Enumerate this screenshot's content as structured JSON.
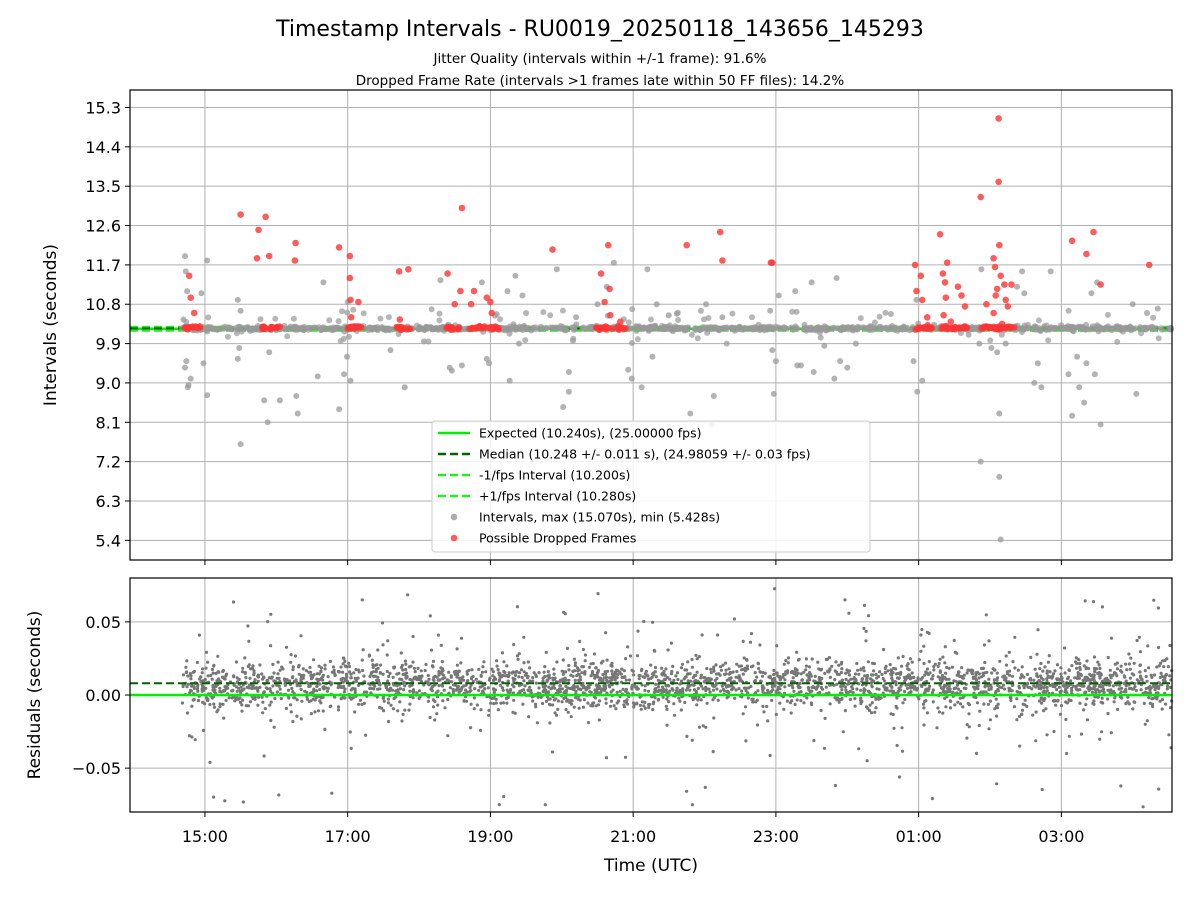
{
  "chart_data": {
    "type": "scatter",
    "title": "Timestamp Intervals - RU0019_20250118_143656_145293",
    "subtitle_lines": [
      "Jitter Quality (intervals within +/-1 frame): 91.6%",
      "Dropped Frame Rate (intervals >1 frames late within 50 FF files): 14.2%"
    ],
    "x_axis": {
      "label": "Time (UTC)",
      "range_hours": [
        13.95,
        28.55
      ],
      "ticks": [
        {
          "hour": 15,
          "label": "15:00"
        },
        {
          "hour": 17,
          "label": "17:00"
        },
        {
          "hour": 19,
          "label": "19:00"
        },
        {
          "hour": 21,
          "label": "21:00"
        },
        {
          "hour": 23,
          "label": "23:00"
        },
        {
          "hour": 25,
          "label": "01:00"
        },
        {
          "hour": 27,
          "label": "03:00"
        }
      ]
    },
    "top_panel": {
      "ylabel": "Intervals (seconds)",
      "ylim": [
        4.95,
        15.7
      ],
      "yticks": [
        "15.3",
        "14.4",
        "13.5",
        "12.6",
        "11.7",
        "10.8",
        "9.9",
        "9.0",
        "8.1",
        "7.2",
        "6.3",
        "5.4"
      ],
      "grid": true,
      "lines": {
        "expected": 10.24,
        "median": 10.248,
        "lower": 10.2,
        "upper": 10.28
      },
      "legend": [
        {
          "label": "Expected (10.240s), (25.00000 fps)",
          "style": "solid",
          "color": "#00ee00"
        },
        {
          "label": "Median (10.248 +/- 0.011 s), (24.98059 +/- 0.03 fps)",
          "style": "dashed",
          "color": "#006400"
        },
        {
          "label": "-1/fps Interval (10.200s)",
          "style": "dashed",
          "color": "#22ee22"
        },
        {
          "label": "+1/fps Interval (10.280s)",
          "style": "dashed",
          "color": "#22ee22"
        },
        {
          "label": "Intervals, max (15.070s), min (5.428s)",
          "style": "marker",
          "color": "#999999"
        },
        {
          "label": "Possible Dropped Frames",
          "style": "marker",
          "color": "#ff3333"
        }
      ],
      "gray_outliers": [
        [
          14.72,
          11.9
        ],
        [
          14.73,
          11.55
        ],
        [
          14.75,
          11.1
        ],
        [
          14.7,
          10.45
        ],
        [
          14.74,
          9.5
        ],
        [
          14.76,
          8.9
        ],
        [
          14.8,
          9.1
        ],
        [
          14.72,
          9.35
        ],
        [
          14.77,
          8.95
        ],
        [
          14.95,
          11.05
        ],
        [
          15.03,
          11.8
        ],
        [
          14.98,
          9.45
        ],
        [
          15.03,
          8.72
        ],
        [
          15.46,
          10.9
        ],
        [
          15.5,
          10.65
        ],
        [
          15.48,
          9.8
        ],
        [
          15.46,
          9.55
        ],
        [
          15.5,
          7.6
        ],
        [
          15.83,
          8.6
        ],
        [
          15.88,
          8.1
        ],
        [
          15.9,
          9.7
        ],
        [
          16.05,
          8.6
        ],
        [
          16.28,
          8.7
        ],
        [
          16.3,
          8.3
        ],
        [
          16.88,
          8.4
        ],
        [
          16.95,
          9.2
        ],
        [
          16.99,
          9.6
        ],
        [
          17.04,
          9.05
        ],
        [
          17.0,
          10.85
        ],
        [
          16.58,
          9.15
        ],
        [
          16.66,
          11.3
        ],
        [
          17.6,
          9.75
        ],
        [
          17.8,
          8.9
        ],
        [
          18.07,
          9.95
        ],
        [
          18.3,
          11.35
        ],
        [
          18.43,
          9.35
        ],
        [
          18.46,
          9.28
        ],
        [
          18.6,
          9.4
        ],
        [
          18.88,
          11.3
        ],
        [
          18.95,
          9.55
        ],
        [
          18.98,
          9.45
        ],
        [
          19.24,
          11.1
        ],
        [
          19.27,
          9.05
        ],
        [
          19.35,
          11.45
        ],
        [
          19.4,
          9.9
        ],
        [
          19.45,
          11.0
        ],
        [
          19.5,
          10.6
        ],
        [
          19.93,
          11.6
        ],
        [
          20.1,
          9.25
        ],
        [
          20.1,
          8.8
        ],
        [
          20.02,
          8.45
        ],
        [
          20.2,
          10.5
        ],
        [
          20.5,
          10.8
        ],
        [
          20.93,
          9.3
        ],
        [
          20.98,
          9.1
        ],
        [
          20.63,
          11.2
        ],
        [
          20.73,
          11.75
        ],
        [
          21.2,
          11.6
        ],
        [
          21.12,
          8.9
        ],
        [
          21.27,
          9.6
        ],
        [
          21.33,
          10.8
        ],
        [
          21.5,
          10.55
        ],
        [
          21.8,
          8.3
        ],
        [
          22.02,
          10.8
        ],
        [
          22.1,
          8.05
        ],
        [
          22.13,
          8.7
        ],
        [
          22.25,
          10.5
        ],
        [
          22.95,
          9.75
        ],
        [
          22.92,
          10.65
        ],
        [
          22.97,
          8.75
        ],
        [
          23.0,
          9.5
        ],
        [
          23.04,
          11.0
        ],
        [
          23.27,
          11.1
        ],
        [
          23.3,
          9.4
        ],
        [
          23.35,
          9.4
        ],
        [
          23.53,
          9.25
        ],
        [
          23.5,
          11.3
        ],
        [
          23.68,
          9.85
        ],
        [
          23.82,
          9.1
        ],
        [
          23.85,
          11.4
        ],
        [
          23.9,
          9.5
        ],
        [
          24.0,
          9.35
        ],
        [
          24.08,
          10.2
        ],
        [
          24.12,
          9.9
        ],
        [
          24.97,
          10.9
        ],
        [
          24.93,
          9.5
        ],
        [
          24.98,
          8.8
        ],
        [
          25.05,
          9.05
        ],
        [
          25.7,
          10.1
        ],
        [
          25.85,
          9.9
        ],
        [
          25.87,
          7.2
        ],
        [
          25.88,
          11.6
        ],
        [
          26.02,
          9.8
        ],
        [
          26.1,
          9.7
        ],
        [
          26.13,
          8.3
        ],
        [
          26.13,
          6.85
        ],
        [
          26.15,
          5.42
        ],
        [
          26.22,
          9.9
        ],
        [
          26.38,
          11.2
        ],
        [
          26.45,
          11.55
        ],
        [
          26.48,
          11.05
        ],
        [
          26.62,
          9.0
        ],
        [
          26.67,
          9.45
        ],
        [
          26.72,
          8.9
        ],
        [
          26.85,
          11.55
        ],
        [
          27.1,
          9.2
        ],
        [
          27.15,
          8.25
        ],
        [
          27.22,
          9.6
        ],
        [
          27.25,
          8.9
        ],
        [
          27.35,
          9.45
        ],
        [
          27.47,
          9.2
        ],
        [
          27.32,
          8.55
        ],
        [
          27.42,
          11.05
        ],
        [
          27.5,
          11.3
        ],
        [
          27.55,
          8.05
        ],
        [
          28.0,
          10.8
        ],
        [
          28.05,
          8.75
        ],
        [
          28.2,
          10.6
        ],
        [
          28.35,
          10.7
        ]
      ],
      "red_dropped": [
        [
          14.78,
          11.45
        ],
        [
          14.8,
          10.95
        ],
        [
          14.85,
          10.6
        ],
        [
          15.5,
          12.85
        ],
        [
          15.75,
          12.5
        ],
        [
          15.85,
          12.8
        ],
        [
          15.73,
          11.85
        ],
        [
          15.9,
          11.9
        ],
        [
          16.27,
          12.2
        ],
        [
          16.26,
          11.8
        ],
        [
          16.88,
          12.1
        ],
        [
          17.03,
          11.9
        ],
        [
          17.03,
          11.4
        ],
        [
          17.04,
          10.9
        ],
        [
          17.05,
          10.5
        ],
        [
          17.15,
          10.85
        ],
        [
          17.72,
          11.55
        ],
        [
          17.85,
          11.6
        ],
        [
          17.73,
          10.45
        ],
        [
          18.4,
          11.5
        ],
        [
          18.6,
          13.0
        ],
        [
          18.58,
          11.1
        ],
        [
          18.5,
          10.8
        ],
        [
          18.73,
          10.8
        ],
        [
          18.77,
          11.1
        ],
        [
          18.95,
          10.95
        ],
        [
          19.0,
          10.85
        ],
        [
          19.02,
          10.6
        ],
        [
          19.87,
          12.05
        ],
        [
          20.55,
          11.5
        ],
        [
          20.65,
          12.15
        ],
        [
          20.67,
          11.15
        ],
        [
          20.6,
          10.85
        ],
        [
          20.68,
          10.55
        ],
        [
          20.82,
          10.4
        ],
        [
          21.75,
          12.15
        ],
        [
          22.22,
          12.45
        ],
        [
          22.25,
          11.8
        ],
        [
          22.93,
          11.75
        ],
        [
          22.95,
          11.75
        ],
        [
          24.95,
          11.7
        ],
        [
          24.97,
          11.1
        ],
        [
          25.03,
          11.45
        ],
        [
          25.05,
          10.9
        ],
        [
          25.12,
          10.5
        ],
        [
          25.3,
          12.4
        ],
        [
          25.34,
          11.5
        ],
        [
          25.37,
          11.3
        ],
        [
          25.4,
          11.75
        ],
        [
          25.38,
          10.95
        ],
        [
          25.55,
          11.2
        ],
        [
          25.6,
          11.0
        ],
        [
          25.65,
          10.75
        ],
        [
          25.35,
          10.55
        ],
        [
          25.45,
          10.4
        ],
        [
          25.87,
          13.25
        ],
        [
          25.95,
          10.8
        ],
        [
          26.05,
          11.85
        ],
        [
          26.07,
          11.65
        ],
        [
          26.1,
          11.15
        ],
        [
          26.12,
          13.6
        ],
        [
          26.12,
          15.05
        ],
        [
          26.13,
          12.15
        ],
        [
          26.15,
          11.45
        ],
        [
          26.2,
          11.25
        ],
        [
          26.22,
          10.9
        ],
        [
          26.25,
          10.75
        ],
        [
          26.08,
          11.0
        ],
        [
          26.05,
          10.6
        ],
        [
          26.17,
          10.35
        ],
        [
          26.3,
          11.25
        ],
        [
          27.15,
          12.25
        ],
        [
          27.35,
          11.95
        ],
        [
          27.45,
          12.45
        ],
        [
          27.55,
          11.25
        ],
        [
          28.23,
          11.7
        ]
      ],
      "red_baseline_clusters": [
        [
          14.72,
          14.95
        ],
        [
          15.8,
          16.05
        ],
        [
          17.0,
          17.25
        ],
        [
          17.68,
          17.88
        ],
        [
          18.38,
          18.6
        ],
        [
          18.7,
          18.92
        ],
        [
          18.95,
          19.12
        ],
        [
          20.48,
          20.72
        ],
        [
          20.75,
          20.9
        ],
        [
          24.93,
          25.2
        ],
        [
          25.32,
          25.68
        ],
        [
          25.85,
          26.38
        ]
      ]
    },
    "bottom_panel": {
      "ylabel": "Residuals (seconds)",
      "ylim": [
        -0.08,
        0.08
      ],
      "yticks": [
        {
          "value": 0.05,
          "label": "0.05"
        },
        {
          "value": 0.0,
          "label": "0.00"
        },
        {
          "value": -0.05,
          "label": "−0.05"
        }
      ],
      "expected_line": 0.0,
      "median_line": 0.008,
      "residual_spread": {
        "core_sd": 0.008,
        "core_mean": 0.007,
        "tail_range": [
          -0.078,
          0.074
        ]
      }
    },
    "colors": {
      "expected": "#00ee00",
      "median": "#006400",
      "bounds": "#22ee22",
      "gray": "#999999",
      "red": "#ff3333",
      "residual": "#777777",
      "grid": "#b0b0b0"
    }
  }
}
